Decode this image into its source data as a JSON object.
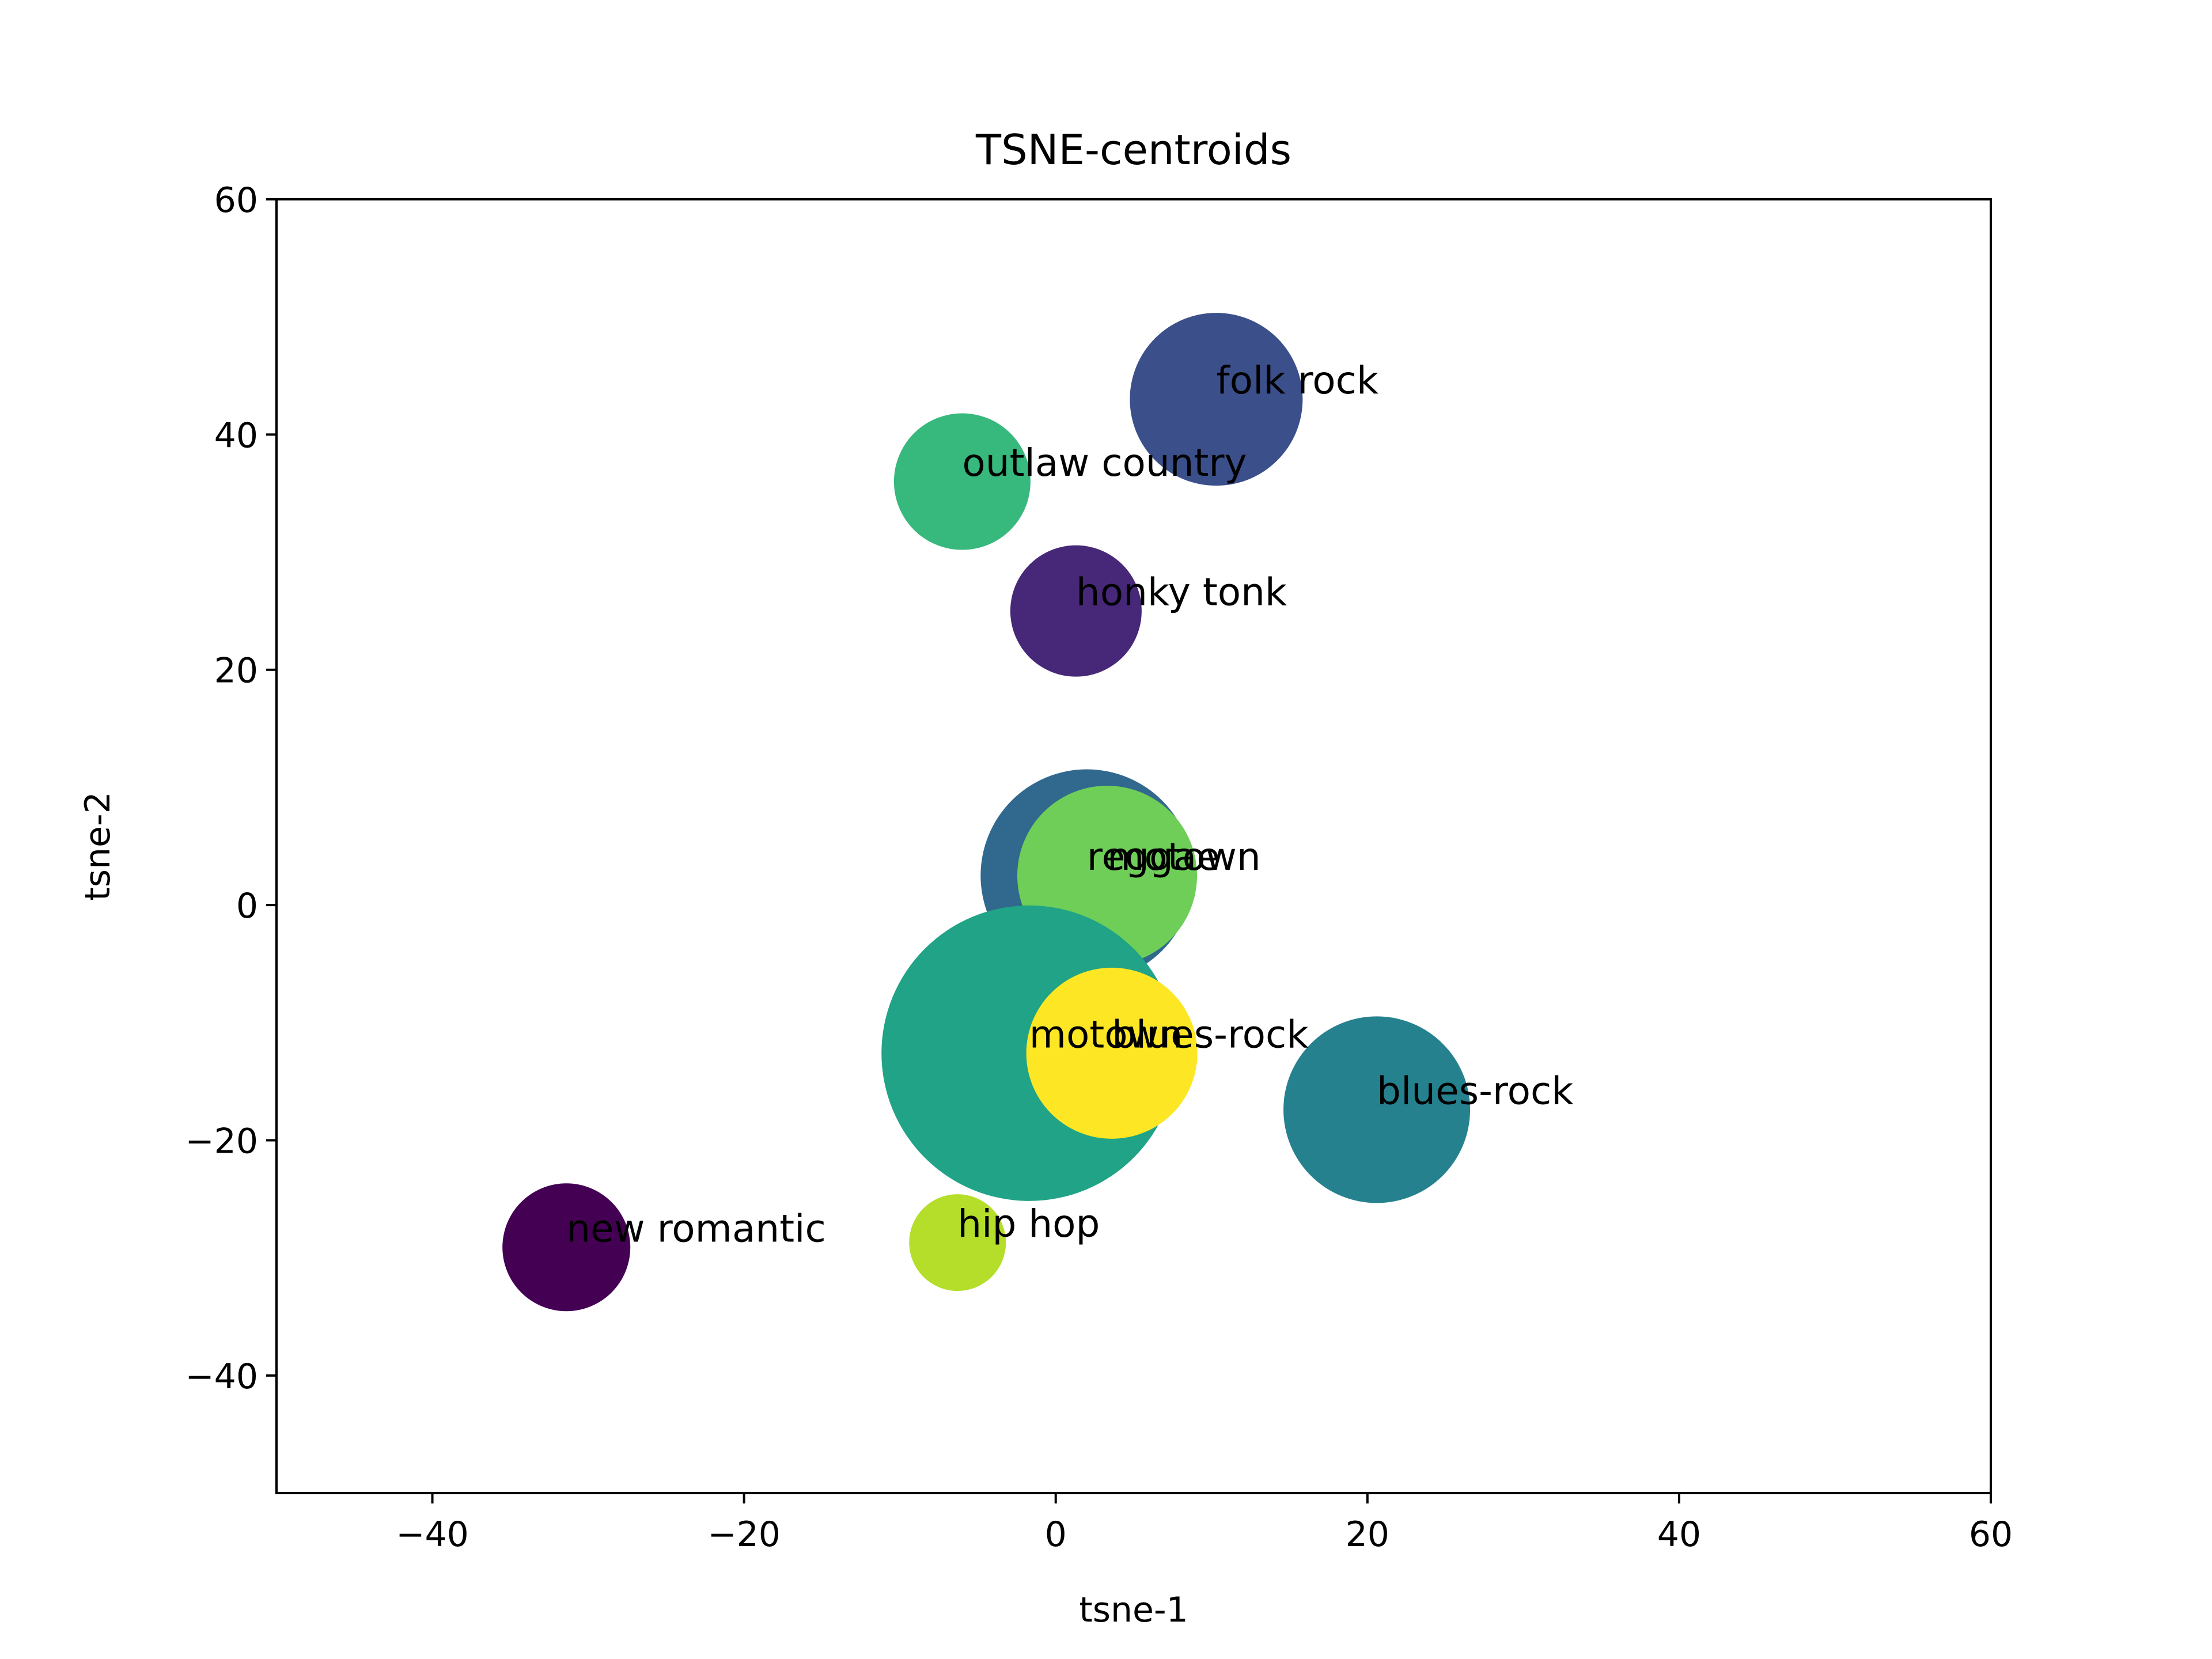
{
  "chart_data": {
    "type": "scatter",
    "title": "TSNE-centroids",
    "xlabel": "tsne-1",
    "ylabel": "tsne-2",
    "xlim": [
      -50,
      60
    ],
    "ylim": [
      -50,
      60
    ],
    "xticks": [
      -40,
      -20,
      0,
      20,
      40,
      60
    ],
    "yticks": [
      -40,
      -20,
      0,
      20,
      40,
      60
    ],
    "xtick_labels": [
      "−40",
      "−20",
      "0",
      "20",
      "40",
      "60"
    ],
    "ytick_labels": [
      "−40",
      "−20",
      "0",
      "20",
      "40",
      "60"
    ],
    "grid": false,
    "points": [
      {
        "label": "folk rock",
        "x": 10.3,
        "y": 43.0,
        "relative_size": 1.0,
        "color": "#3b4f8a"
      },
      {
        "label": "outlaw country",
        "x": -6.0,
        "y": 36.0,
        "relative_size": 0.79,
        "color": "#37b87c"
      },
      {
        "label": "honky tonk",
        "x": 1.3,
        "y": 25.0,
        "relative_size": 0.76,
        "color": "#472878"
      },
      {
        "label": "reggae",
        "x": 2.0,
        "y": 2.5,
        "relative_size": 1.23,
        "color": "#31688e"
      },
      {
        "label": "motown",
        "x": 3.3,
        "y": 2.5,
        "relative_size": 1.04,
        "color": "#6ece58"
      },
      {
        "label": "motown",
        "x": -1.7,
        "y": -12.6,
        "relative_size": 1.71,
        "color": "#20a386"
      },
      {
        "label": "blues-rock",
        "x": 3.6,
        "y": -12.6,
        "relative_size": 0.99,
        "color": "#fde725"
      },
      {
        "label": "blues-rock",
        "x": 20.6,
        "y": -17.4,
        "relative_size": 1.08,
        "color": "#26818e"
      },
      {
        "label": "new romantic",
        "x": -31.4,
        "y": -29.1,
        "relative_size": 0.74,
        "color": "#440154"
      },
      {
        "label": "hip hop",
        "x": -6.3,
        "y": -28.7,
        "relative_size": 0.56,
        "color": "#b5de2b"
      }
    ]
  }
}
